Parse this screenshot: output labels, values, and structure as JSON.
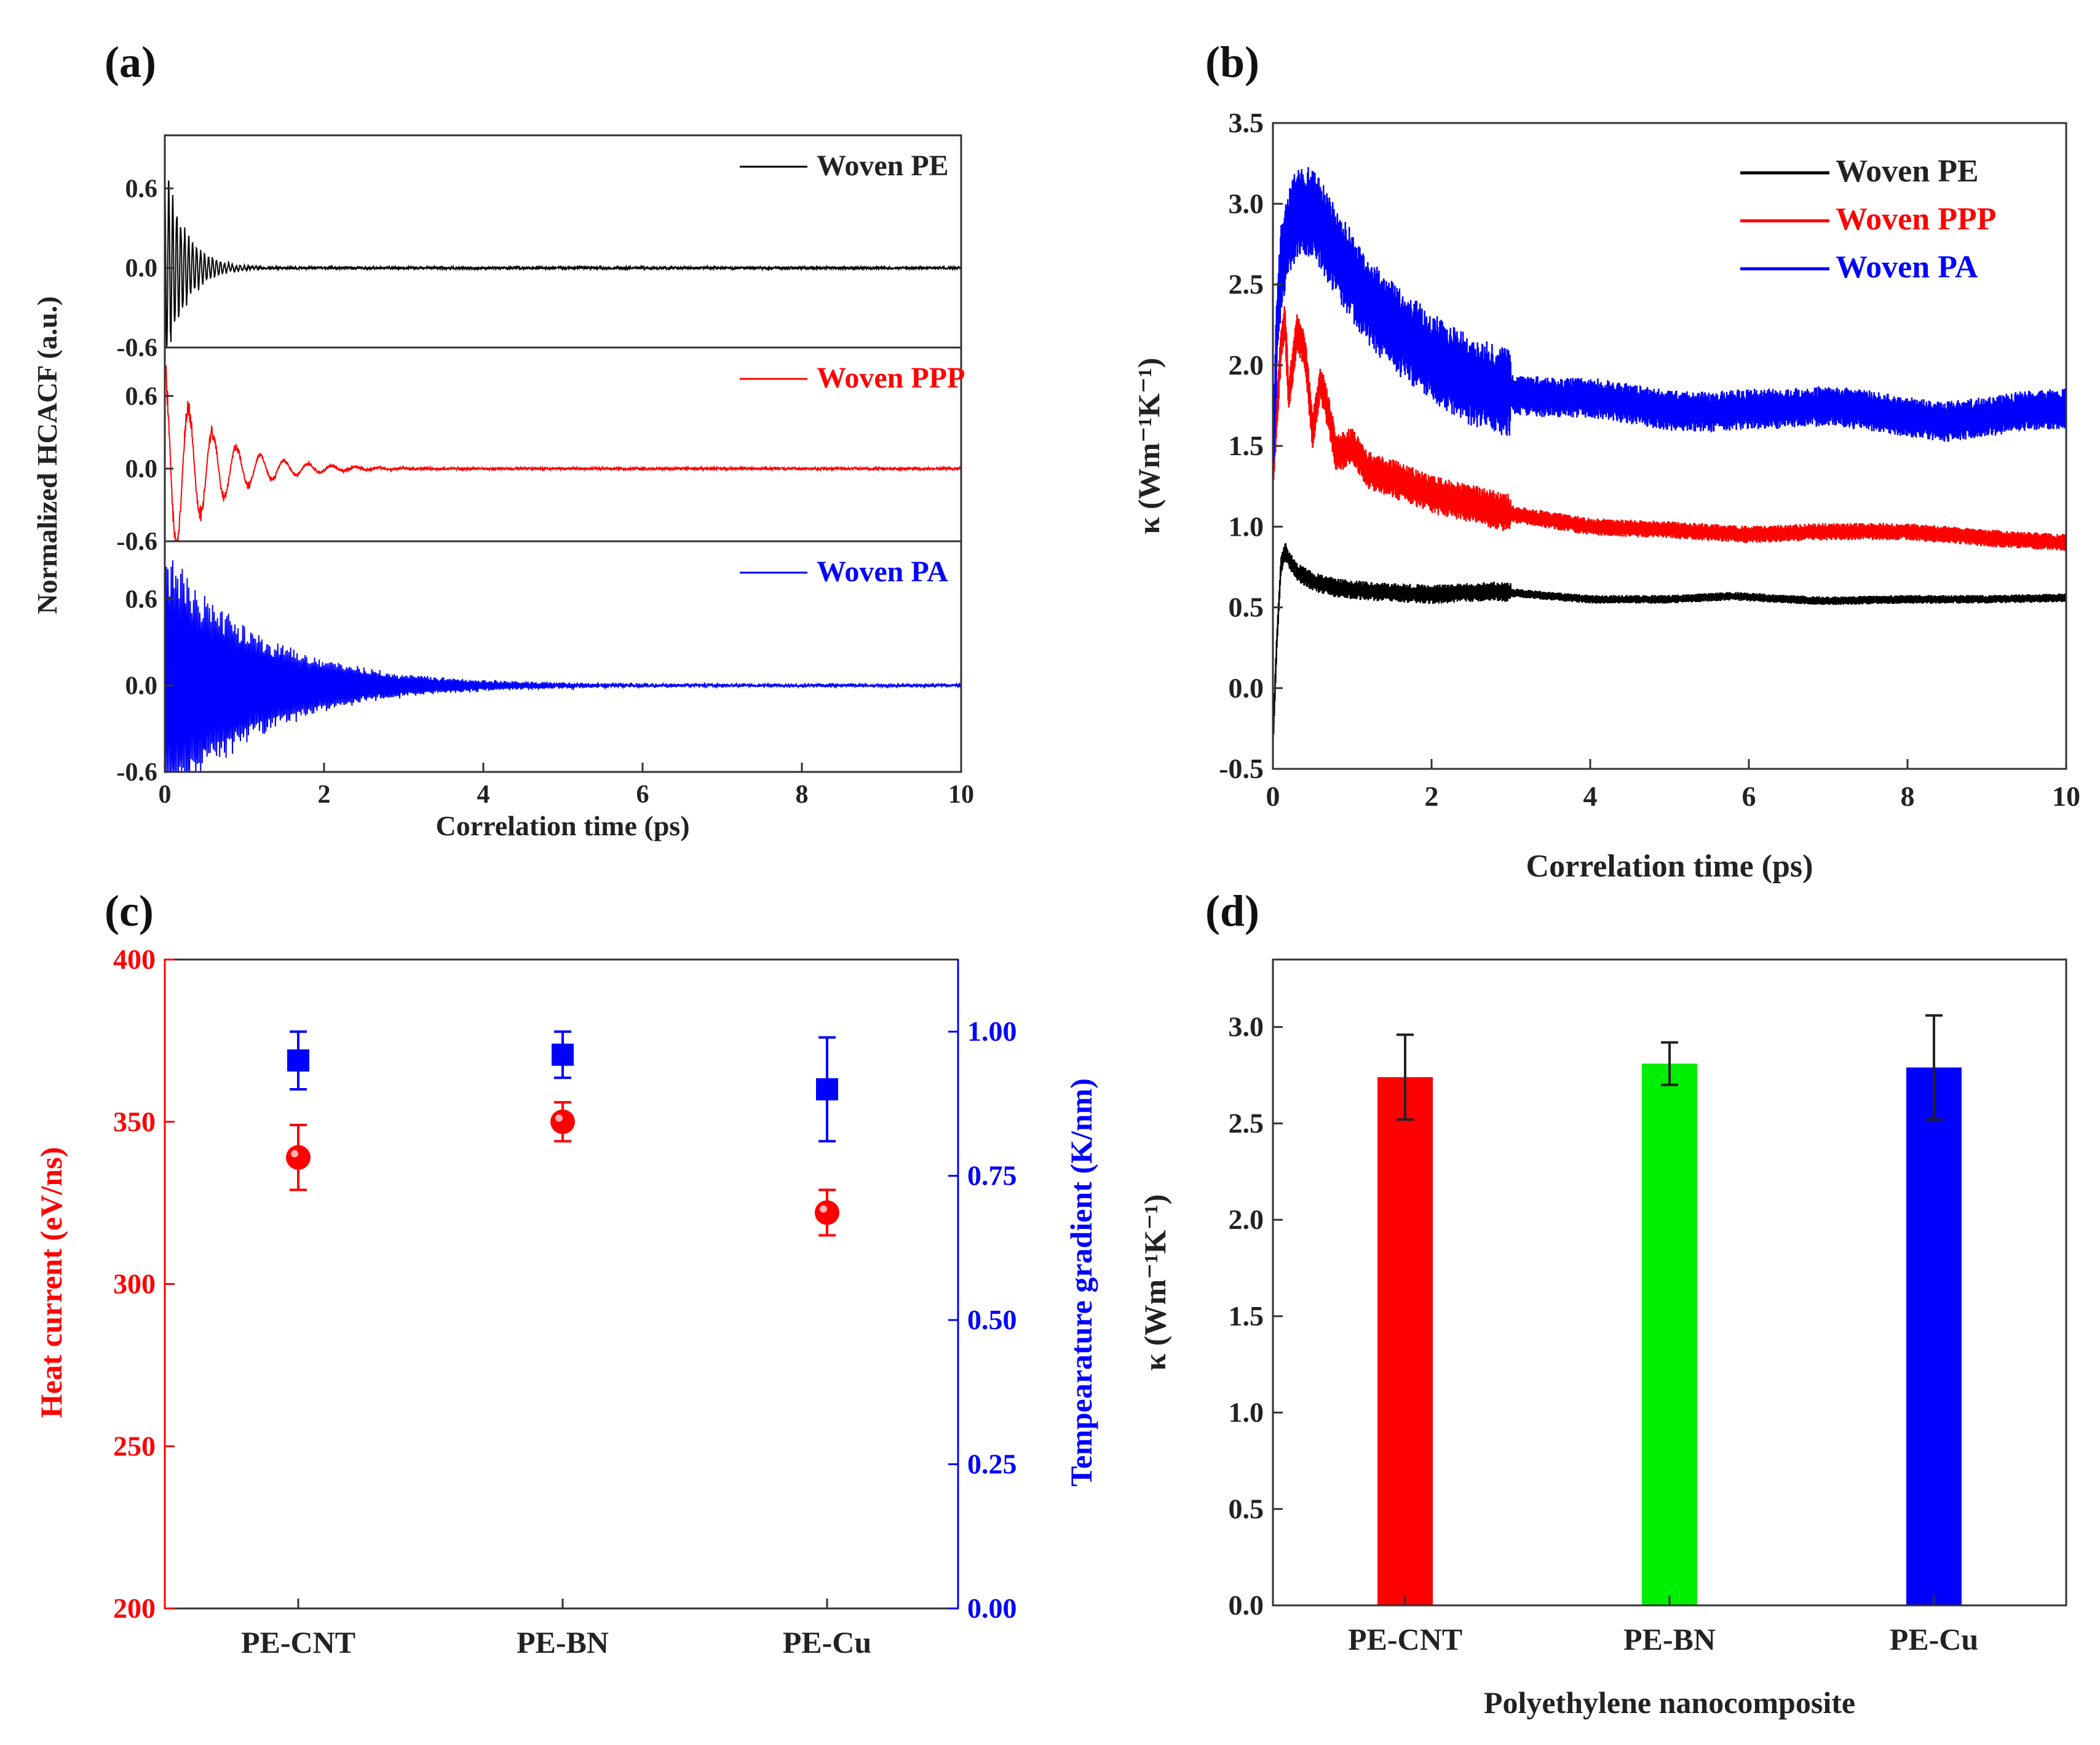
{
  "panels": {
    "a": {
      "label": "(a)"
    },
    "b": {
      "label": "(b)"
    },
    "c": {
      "label": "(c)"
    },
    "d": {
      "label": "(d)"
    }
  },
  "chart_data": [
    {
      "id": "a",
      "type": "line",
      "xlabel": "Correlation time (ps)",
      "ylabel": "Normalized HCACF (a.u.)",
      "xlim": [
        0,
        10
      ],
      "ylim": [
        -0.6,
        1.0
      ],
      "xticks": [
        "0",
        "2",
        "4",
        "6",
        "8",
        "10"
      ],
      "yticks": [
        "-0.6",
        "0.0",
        "0.6"
      ],
      "subplots": [
        {
          "name": "Woven PE",
          "color": "#000000",
          "initial_amplitude": 0.9,
          "decay_time_ps": 0.25,
          "osc_period_ps": 0.05
        },
        {
          "name": "Woven PPP",
          "color": "#ff0000",
          "initial_amplitude": 0.95,
          "decay_time_ps": 0.6,
          "osc_period_ps": 0.3
        },
        {
          "name": "Woven PA",
          "color": "#0000ff",
          "initial_amplitude": 1.0,
          "decay_time_ps": 1.2,
          "osc_period_ps": 0.02
        }
      ]
    },
    {
      "id": "b",
      "type": "line",
      "xlabel": "Correlation time (ps)",
      "ylabel": "κ (Wm⁻¹K⁻¹)",
      "xlim": [
        0,
        10
      ],
      "ylim": [
        -0.5,
        3.5
      ],
      "xticks": [
        "0",
        "2",
        "4",
        "6",
        "8",
        "10"
      ],
      "yticks": [
        "-0.5",
        "0.0",
        "0.5",
        "1.0",
        "1.5",
        "2.0",
        "2.5",
        "3.0",
        "3.5"
      ],
      "legend": "top-right",
      "series": [
        {
          "name": "Woven PE",
          "color": "#000000",
          "band": 0.06,
          "x": [
            0,
            0.05,
            0.1,
            0.15,
            0.2,
            0.3,
            0.5,
            0.8,
            1.2,
            2,
            2.8,
            3.5,
            4,
            5,
            5.8,
            6.5,
            7,
            8,
            9,
            10
          ],
          "y": [
            -0.35,
            0.3,
            0.75,
            0.85,
            0.8,
            0.72,
            0.66,
            0.62,
            0.6,
            0.58,
            0.6,
            0.57,
            0.55,
            0.55,
            0.57,
            0.55,
            0.54,
            0.55,
            0.55,
            0.56
          ]
        },
        {
          "name": "Woven PPP",
          "color": "#ff0000",
          "band": 0.12,
          "x": [
            0,
            0.05,
            0.1,
            0.15,
            0.2,
            0.3,
            0.4,
            0.5,
            0.6,
            0.7,
            0.8,
            1.0,
            1.2,
            1.5,
            2,
            3,
            4,
            5,
            6,
            7,
            8,
            9,
            10
          ],
          "y": [
            1.3,
            1.7,
            2.1,
            2.3,
            1.8,
            2.2,
            2.1,
            1.6,
            1.9,
            1.7,
            1.45,
            1.5,
            1.35,
            1.3,
            1.2,
            1.08,
            1.0,
            0.98,
            0.95,
            0.97,
            0.97,
            0.93,
            0.9
          ]
        },
        {
          "name": "Woven PA",
          "color": "#0000ff",
          "band": 0.28,
          "x": [
            0,
            0.05,
            0.1,
            0.2,
            0.3,
            0.5,
            0.8,
            1.2,
            1.6,
            2,
            2.5,
            3,
            3.5,
            4,
            4.5,
            5,
            5.5,
            6,
            6.5,
            7,
            7.5,
            8,
            8.5,
            9,
            9.5,
            10
          ],
          "y": [
            1.4,
            2.2,
            2.6,
            2.8,
            2.95,
            2.95,
            2.7,
            2.4,
            2.2,
            2.05,
            1.9,
            1.82,
            1.8,
            1.8,
            1.76,
            1.72,
            1.71,
            1.73,
            1.73,
            1.75,
            1.72,
            1.68,
            1.65,
            1.68,
            1.72,
            1.73
          ]
        }
      ]
    },
    {
      "id": "c",
      "type": "scatter",
      "categories": [
        "PE-CNT",
        "PE-BN",
        "PE-Cu"
      ],
      "ylabel": "Heat current (eV/ns)",
      "y2label": "Tempearature gradient (K/nm)",
      "ylim": [
        200,
        400
      ],
      "y2lim": [
        0,
        1.125
      ],
      "yticks": [
        "200",
        "250",
        "300",
        "350",
        "400"
      ],
      "y2ticks": [
        "0.00",
        "0.25",
        "0.50",
        "0.75",
        "1.00"
      ],
      "series": [
        {
          "name": "Heat current",
          "color": "#ff0000",
          "marker": "circle",
          "axis": "left",
          "values": [
            339,
            350,
            322
          ],
          "errors": [
            10,
            6,
            7
          ]
        },
        {
          "name": "Temperature gradient",
          "color": "#0000ff",
          "marker": "square",
          "axis": "right",
          "values": [
            0.95,
            0.96,
            0.9
          ],
          "errors": [
            0.05,
            0.04,
            0.09
          ]
        }
      ]
    },
    {
      "id": "d",
      "type": "bar",
      "categories": [
        "PE-CNT",
        "PE-BN",
        "PE-Cu"
      ],
      "xlabel": "Polyethylene nanocomposite",
      "ylabel": "κ (Wm⁻¹K⁻¹)",
      "ylim": [
        0,
        3.35
      ],
      "yticks": [
        "0.0",
        "0.5",
        "1.0",
        "1.5",
        "2.0",
        "2.5",
        "3.0"
      ],
      "values": [
        2.74,
        2.81,
        2.79
      ],
      "errors": [
        0.22,
        0.11,
        0.27
      ],
      "colors": [
        "#ff0000",
        "#00ee00",
        "#0000ff"
      ]
    }
  ]
}
